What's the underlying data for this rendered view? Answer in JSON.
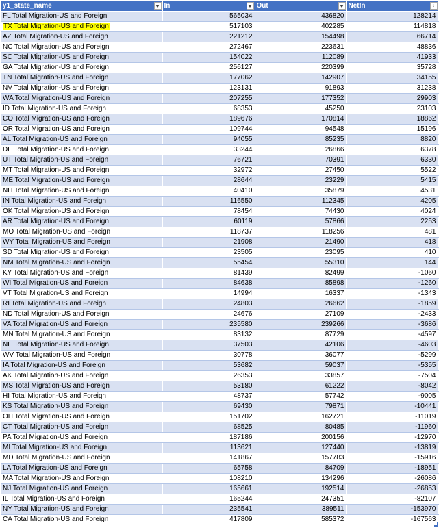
{
  "columns": [
    {
      "label": "y1_state_name",
      "filter": "dropdown"
    },
    {
      "label": "In",
      "filter": "dropdown"
    },
    {
      "label": "Out",
      "filter": "dropdown"
    },
    {
      "label": "NetIn",
      "filter": "sorted-descending"
    }
  ],
  "highlight_color": "#ffff00",
  "header_color": "#4472c4",
  "band_color": "#d9e1f2",
  "rows": [
    {
      "name": "FL Total Migration-US and Foreign",
      "in": "565034",
      "out": "436820",
      "net": "128214"
    },
    {
      "name": "TX Total Migration-US and Foreign",
      "in": "517103",
      "out": "402285",
      "net": "114818",
      "highlight": true
    },
    {
      "name": "AZ Total Migration-US and Foreign",
      "in": "221212",
      "out": "154498",
      "net": "66714"
    },
    {
      "name": "NC Total Migration-US and Foreign",
      "in": "272467",
      "out": "223631",
      "net": "48836"
    },
    {
      "name": "SC Total Migration-US and Foreign",
      "in": "154022",
      "out": "112089",
      "net": "41933"
    },
    {
      "name": "GA Total Migration-US and Foreign",
      "in": "256127",
      "out": "220399",
      "net": "35728"
    },
    {
      "name": "TN Total Migration-US and Foreign",
      "in": "177062",
      "out": "142907",
      "net": "34155"
    },
    {
      "name": "NV Total Migration-US and Foreign",
      "in": "123131",
      "out": "91893",
      "net": "31238"
    },
    {
      "name": "WA Total Migration-US and Foreign",
      "in": "207255",
      "out": "177352",
      "net": "29903"
    },
    {
      "name": "ID Total Migration-US and Foreign",
      "in": "68353",
      "out": "45250",
      "net": "23103"
    },
    {
      "name": "CO Total Migration-US and Foreign",
      "in": "189676",
      "out": "170814",
      "net": "18862"
    },
    {
      "name": "OR Total Migration-US and Foreign",
      "in": "109744",
      "out": "94548",
      "net": "15196"
    },
    {
      "name": "AL Total Migration-US and Foreign",
      "in": "94055",
      "out": "85235",
      "net": "8820"
    },
    {
      "name": "DE Total Migration-US and Foreign",
      "in": "33244",
      "out": "26866",
      "net": "6378"
    },
    {
      "name": "UT Total Migration-US and Foreign",
      "in": "76721",
      "out": "70391",
      "net": "6330"
    },
    {
      "name": "MT Total Migration-US and Foreign",
      "in": "32972",
      "out": "27450",
      "net": "5522"
    },
    {
      "name": "ME Total Migration-US and Foreign",
      "in": "28644",
      "out": "23229",
      "net": "5415"
    },
    {
      "name": "NH Total Migration-US and Foreign",
      "in": "40410",
      "out": "35879",
      "net": "4531"
    },
    {
      "name": "IN Total Migration-US and Foreign",
      "in": "116550",
      "out": "112345",
      "net": "4205"
    },
    {
      "name": "OK Total Migration-US and Foreign",
      "in": "78454",
      "out": "74430",
      "net": "4024"
    },
    {
      "name": "AR Total Migration-US and Foreign",
      "in": "60119",
      "out": "57866",
      "net": "2253"
    },
    {
      "name": "MO Total Migration-US and Foreign",
      "in": "118737",
      "out": "118256",
      "net": "481"
    },
    {
      "name": "WY Total Migration-US and Foreign",
      "in": "21908",
      "out": "21490",
      "net": "418"
    },
    {
      "name": "SD Total Migration-US and Foreign",
      "in": "23505",
      "out": "23095",
      "net": "410"
    },
    {
      "name": "NM Total Migration-US and Foreign",
      "in": "55454",
      "out": "55310",
      "net": "144"
    },
    {
      "name": "KY Total Migration-US and Foreign",
      "in": "81439",
      "out": "82499",
      "net": "-1060"
    },
    {
      "name": "WI Total Migration-US and Foreign",
      "in": "84638",
      "out": "85898",
      "net": "-1260"
    },
    {
      "name": "VT Total Migration-US and Foreign",
      "in": "14994",
      "out": "16337",
      "net": "-1343"
    },
    {
      "name": "RI Total Migration-US and Foreign",
      "in": "24803",
      "out": "26662",
      "net": "-1859"
    },
    {
      "name": "ND Total Migration-US and Foreign",
      "in": "24676",
      "out": "27109",
      "net": "-2433"
    },
    {
      "name": "VA Total Migration-US and Foreign",
      "in": "235580",
      "out": "239266",
      "net": "-3686"
    },
    {
      "name": "MN Total Migration-US and Foreign",
      "in": "83132",
      "out": "87729",
      "net": "-4597"
    },
    {
      "name": "NE Total Migration-US and Foreign",
      "in": "37503",
      "out": "42106",
      "net": "-4603"
    },
    {
      "name": "WV Total Migration-US and Foreign",
      "in": "30778",
      "out": "36077",
      "net": "-5299"
    },
    {
      "name": "IA Total Migration-US and Foreign",
      "in": "53682",
      "out": "59037",
      "net": "-5355"
    },
    {
      "name": "AK Total Migration-US and Foreign",
      "in": "26353",
      "out": "33857",
      "net": "-7504"
    },
    {
      "name": "MS Total Migration-US and Foreign",
      "in": "53180",
      "out": "61222",
      "net": "-8042"
    },
    {
      "name": "HI Total Migration-US and Foreign",
      "in": "48737",
      "out": "57742",
      "net": "-9005"
    },
    {
      "name": "KS Total Migration-US and Foreign",
      "in": "69430",
      "out": "79871",
      "net": "-10441"
    },
    {
      "name": "OH Total Migration-US and Foreign",
      "in": "151702",
      "out": "162721",
      "net": "-11019"
    },
    {
      "name": "CT Total Migration-US and Foreign",
      "in": "68525",
      "out": "80485",
      "net": "-11960"
    },
    {
      "name": "PA Total Migration-US and Foreign",
      "in": "187186",
      "out": "200156",
      "net": "-12970"
    },
    {
      "name": "MI Total Migration-US and Foreign",
      "in": "113621",
      "out": "127440",
      "net": "-13819"
    },
    {
      "name": "MD Total Migration-US and Foreign",
      "in": "141867",
      "out": "157783",
      "net": "-15916"
    },
    {
      "name": "LA Total Migration-US and Foreign",
      "in": "65758",
      "out": "84709",
      "net": "-18951"
    },
    {
      "name": "MA Total Migration-US and Foreign",
      "in": "108210",
      "out": "134296",
      "net": "-26086"
    },
    {
      "name": "NJ Total Migration-US and Foreign",
      "in": "165661",
      "out": "192514",
      "net": "-26853"
    },
    {
      "name": "IL Total Migration-US and Foreign",
      "in": "165244",
      "out": "247351",
      "net": "-82107"
    },
    {
      "name": "NY Total Migration-US and Foreign",
      "in": "235541",
      "out": "389511",
      "net": "-153970"
    },
    {
      "name": "CA Total Migration-US and Foreign",
      "in": "417809",
      "out": "585372",
      "net": "-167563"
    }
  ]
}
